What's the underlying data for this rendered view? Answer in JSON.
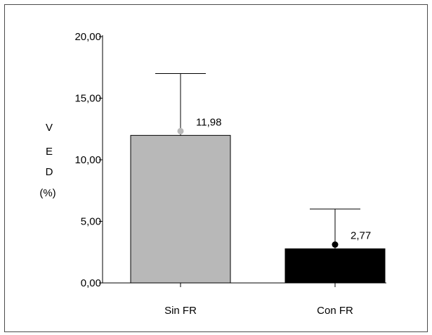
{
  "chart_data": {
    "type": "bar",
    "categories": [
      "Sin FR",
      "Con FR"
    ],
    "values": [
      11.98,
      2.77
    ],
    "error_upper": [
      17.0,
      6.0
    ],
    "value_labels": [
      "11,98",
      "2,77"
    ],
    "bar_colors": [
      "#b8b8b8",
      "#000000"
    ],
    "marker_colors": [
      "#b8b8b8",
      "#000000"
    ],
    "ylabel_lines": [
      "V",
      "E",
      "D",
      "(%)"
    ],
    "yticks": [
      0,
      5,
      10,
      15,
      20
    ],
    "ytick_labels": [
      "0,00",
      "5,00",
      "10,00",
      "15,00",
      "20,00"
    ],
    "ylim": [
      0,
      20
    ],
    "title": "",
    "xlabel": "",
    "grid": false,
    "legend": "none"
  }
}
